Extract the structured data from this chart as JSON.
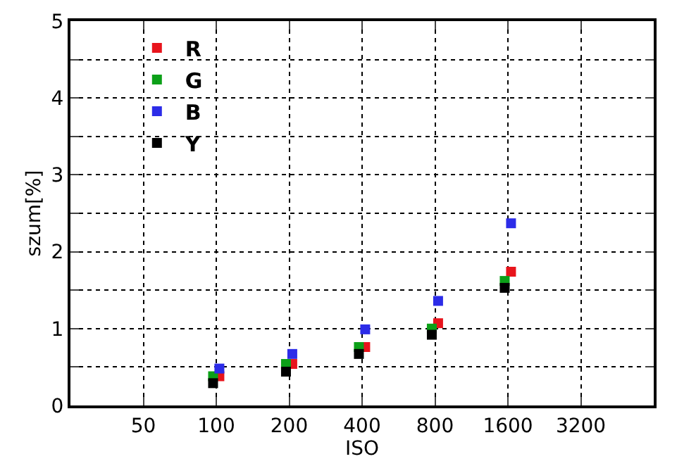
{
  "chart_data": {
    "type": "scatter",
    "xlabel": "ISO",
    "ylabel": "szum[%]",
    "log": "x",
    "marker": "square",
    "grid": true,
    "legend": "top left",
    "xlim": [
      25,
      6400
    ],
    "xticks": [
      50,
      100,
      200,
      400,
      800,
      1600,
      3200
    ],
    "ylim": [
      0,
      5
    ],
    "yticks": [
      0,
      {
        "value": 0.5,
        "label": null
      },
      1,
      {
        "value": 1.5,
        "label": null
      },
      2,
      {
        "value": 2.5,
        "label": null
      },
      3,
      {
        "value": 3.5,
        "label": null
      },
      4,
      {
        "value": 4.5,
        "label": null
      },
      5
    ],
    "series": [
      {
        "name": "R",
        "color": "#e8141c",
        "x": [
          103,
          206,
          412,
          824,
          1648
        ],
        "values": [
          0.38,
          0.54,
          0.76,
          1.07,
          1.74
        ]
      },
      {
        "name": "G",
        "color": "#0ca018",
        "x": [
          97,
          194,
          388,
          776,
          1552
        ],
        "values": [
          0.38,
          0.54,
          0.76,
          1.0,
          1.62
        ]
      },
      {
        "name": "B",
        "color": "#2c2ce8",
        "x": [
          103,
          206,
          412,
          824,
          1648
        ],
        "values": [
          0.48,
          0.67,
          0.99,
          1.36,
          2.37
        ]
      },
      {
        "name": "Y",
        "color": "#000000",
        "x": [
          97,
          194,
          388,
          776,
          1552
        ],
        "values": [
          0.29,
          0.44,
          0.67,
          0.92,
          1.53
        ]
      }
    ]
  }
}
